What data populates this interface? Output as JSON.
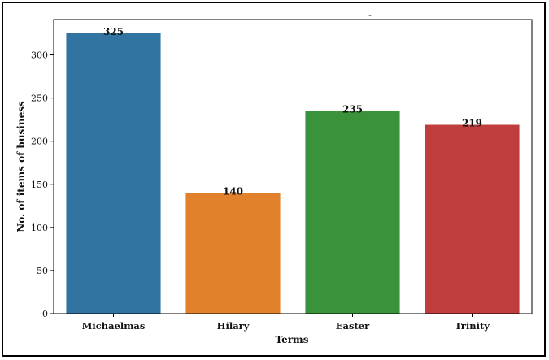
{
  "chart_data": {
    "type": "bar",
    "title": "",
    "top_mark": "-",
    "xlabel": "Terms",
    "ylabel": "No. of items of business",
    "categories": [
      "Michaelmas",
      "Hilary",
      "Easter",
      "Trinity"
    ],
    "values": [
      325,
      140,
      235,
      219
    ],
    "value_labels": [
      "325",
      "140",
      "235",
      "219"
    ],
    "colors": [
      "#3274a1",
      "#e1812c",
      "#3a923a",
      "#c03d3e"
    ],
    "ylim": [
      0,
      341
    ],
    "yticks": [
      0,
      50,
      100,
      150,
      200,
      250,
      300
    ],
    "grid": false,
    "legend": "none"
  }
}
